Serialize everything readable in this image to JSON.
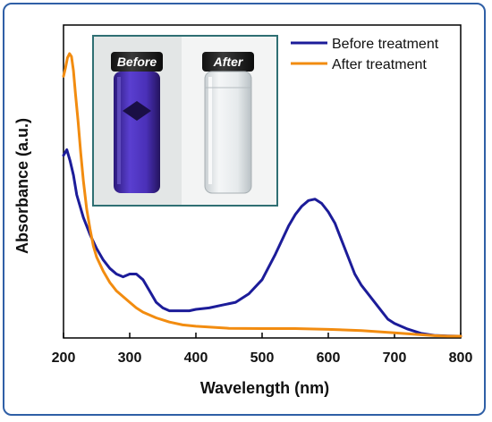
{
  "chart_data": {
    "type": "line",
    "xlabel": "Wavelength (nm)",
    "ylabel": "Absorbance (a.u.)",
    "xlim": [
      200,
      800
    ],
    "ylim": [
      0,
      1
    ],
    "x_ticks": [
      200,
      300,
      400,
      500,
      600,
      700,
      800
    ],
    "y_ticks": [],
    "grid": false,
    "legend_position": "top-right",
    "series": [
      {
        "name": "Before treatment",
        "color": "#1c1c99",
        "x": [
          200,
          205,
          210,
          215,
          220,
          230,
          240,
          250,
          260,
          270,
          280,
          290,
          300,
          310,
          320,
          330,
          340,
          350,
          360,
          370,
          380,
          390,
          400,
          420,
          440,
          460,
          480,
          500,
          520,
          540,
          550,
          560,
          570,
          580,
          590,
          600,
          610,
          620,
          630,
          640,
          650,
          660,
          670,
          680,
          690,
          700,
          720,
          740,
          760,
          780,
          800
        ],
        "y": [
          0.64,
          0.66,
          0.62,
          0.57,
          0.5,
          0.42,
          0.36,
          0.31,
          0.27,
          0.24,
          0.22,
          0.21,
          0.22,
          0.22,
          0.2,
          0.16,
          0.12,
          0.1,
          0.09,
          0.09,
          0.09,
          0.09,
          0.095,
          0.1,
          0.11,
          0.12,
          0.15,
          0.2,
          0.29,
          0.39,
          0.43,
          0.46,
          0.48,
          0.485,
          0.47,
          0.44,
          0.4,
          0.34,
          0.28,
          0.22,
          0.18,
          0.15,
          0.12,
          0.09,
          0.06,
          0.045,
          0.025,
          0.01,
          0.003,
          0.001,
          0.0
        ]
      },
      {
        "name": "After treatment",
        "color": "#f28c10",
        "x": [
          200,
          203,
          206,
          209,
          212,
          215,
          218,
          222,
          226,
          230,
          235,
          240,
          245,
          250,
          260,
          270,
          280,
          290,
          300,
          310,
          320,
          340,
          360,
          380,
          400,
          450,
          500,
          550,
          600,
          650,
          700,
          740,
          760,
          780,
          800
        ],
        "y": [
          0.92,
          0.95,
          0.985,
          1.0,
          0.99,
          0.94,
          0.86,
          0.76,
          0.65,
          0.55,
          0.45,
          0.38,
          0.32,
          0.28,
          0.23,
          0.19,
          0.16,
          0.14,
          0.12,
          0.1,
          0.085,
          0.065,
          0.05,
          0.04,
          0.035,
          0.028,
          0.027,
          0.027,
          0.024,
          0.02,
          0.012,
          0.005,
          0.002,
          0.0,
          0.0
        ]
      }
    ],
    "inset": {
      "labels": [
        "Before",
        "After"
      ]
    }
  }
}
